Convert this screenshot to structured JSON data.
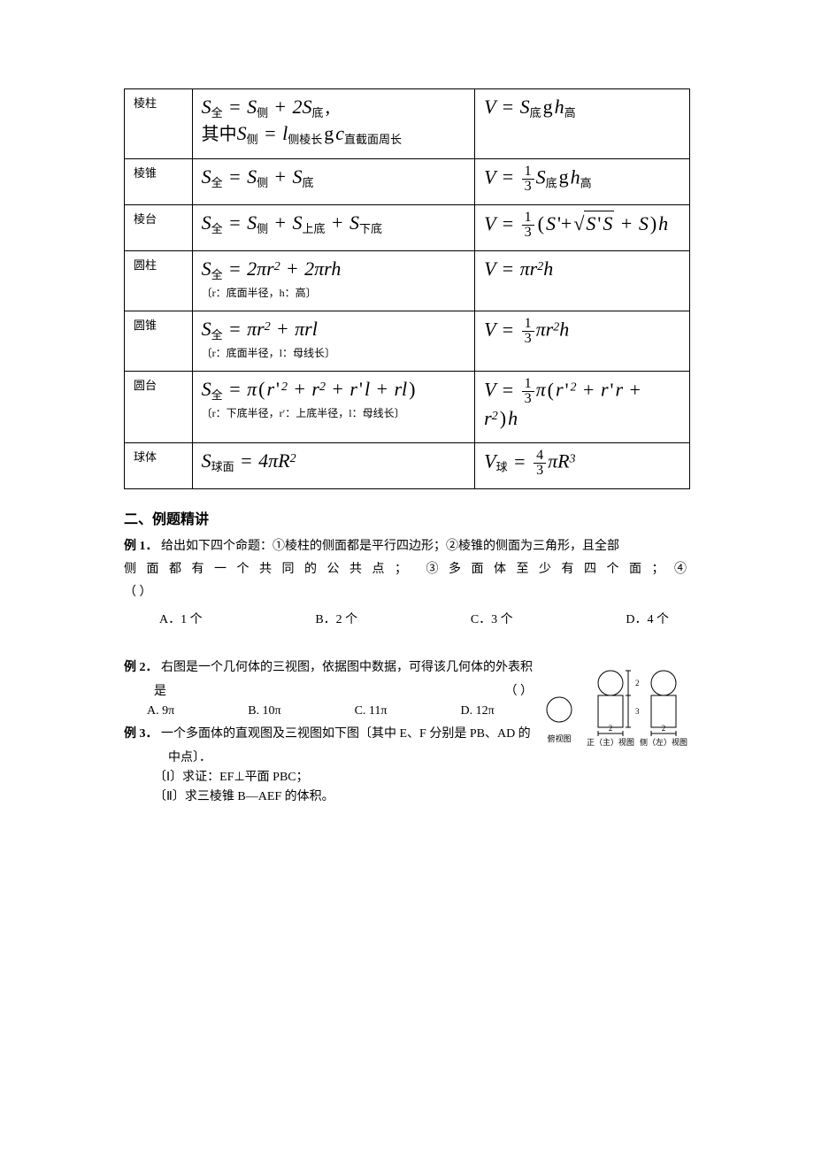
{
  "table": {
    "rows": [
      {
        "name": "棱柱",
        "sa_html": "<span>S</span><span class='sub'>全</span> <span class='op'>=</span> <span>S</span><span class='sub'>侧</span> <span class='op'>+</span> 2<span>S</span><span class='sub'>底</span><span class='op'>,</span><br><span class='cn'>其中</span><span>S</span><span class='sub'>侧</span> <span class='op'>=</span> <span>l</span><span class='sub'>侧棱长</span><span class='op'>g</span><span>c</span><span class='sub'>直截面周长</span>",
        "sa_note": "",
        "vol_html": "<span>V</span> <span class='op'>=</span> <span>S</span><span class='sub'>底</span><span class='op'>g</span><span>h</span><span class='sub'>高</span>"
      },
      {
        "name": "棱锥",
        "sa_html": "<span>S</span><span class='sub'>全</span> <span class='op'>=</span> <span>S</span><span class='sub'>侧</span> <span class='op'>+</span> <span>S</span><span class='sub'>底</span>",
        "sa_note": "",
        "vol_html": "<span>V</span> <span class='op'>=</span> <span class='frac'><span class='num'>1</span><span class='den'>3</span></span><span>S</span><span class='sub'>底</span><span class='op'>g</span><span>h</span><span class='sub'>高</span>"
      },
      {
        "name": "棱台",
        "sa_html": "<span>S</span><span class='sub'>全</span> <span class='op'>=</span> <span>S</span><span class='sub'>侧</span> <span class='op'>+</span> <span>S</span><span class='sub'>上底</span> <span class='op'>+</span> <span>S</span><span class='sub'>下底</span>",
        "sa_note": "",
        "vol_html": "<span>V</span> <span class='op'>=</span> <span class='frac'><span class='num'>1</span><span class='den'>3</span></span><span class='op'>(</span><span>S</span><span class='op'>'+</span><span class='sqrt'><span class='rad'><span>S</span><span class='op'>'</span><span>S</span></span></span> <span class='op'>+</span> <span>S</span><span class='op'>)</span><span>h</span>"
      },
      {
        "name": "圆柱",
        "sa_html": "<span>S</span><span class='sub'>全</span> <span class='op'>=</span> 2<span>π</span><span>r</span><span class='sup'>2</span> <span class='op'>+</span> 2<span>π</span><span>r</span><span>h</span>",
        "sa_note": "〔r：底面半径，h：高〕",
        "vol_html": "<span>V</span> <span class='op'>=</span> <span>π</span><span>r</span><span class='sup'>2</span><span>h</span>"
      },
      {
        "name": "圆锥",
        "sa_html": "<span>S</span><span class='sub'>全</span> <span class='op'>=</span> <span>π</span><span>r</span><span class='sup'>2</span> <span class='op'>+</span> <span>π</span><span>r</span><span>l</span>",
        "sa_note": "〔r：底面半径，l：母线长〕",
        "vol_html": "<span>V</span> <span class='op'>=</span> <span class='frac'><span class='num'>1</span><span class='den'>3</span></span><span>π</span><span>r</span><span class='sup'>2</span><span>h</span>"
      },
      {
        "name": "圆台",
        "sa_html": "<span>S</span><span class='sub'>全</span> <span class='op'>=</span> <span>π</span><span class='op'>(</span><span>r</span><span class='op'>'</span><span class='sup'>2</span> <span class='op'>+</span> <span>r</span><span class='sup'>2</span> <span class='op'>+</span> <span>r</span><span class='op'>'</span><span>l</span> <span class='op'>+</span> <span>r</span><span>l</span><span class='op'>)</span>",
        "sa_note": "〔r：下底半径，r′：上底半径，l：母线长〕",
        "vol_html": "<span>V</span> <span class='op'>=</span> <span class='frac'><span class='num'>1</span><span class='den'>3</span></span><span>π</span><span class='op'>(</span><span>r</span><span class='op'>'</span><span class='sup'>2</span> <span class='op'>+</span> <span>r</span><span class='op'>'</span><span>r</span> <span class='op'>+</span> <span>r</span><span class='sup'>2</span><span class='op'>)</span><span>h</span>"
      },
      {
        "name": "球体",
        "sa_html": "<span>S</span><span class='sub'>球面</span> <span class='op'>=</span> 4<span>π</span><span>R</span><span class='sup'>2</span>",
        "sa_note": "",
        "vol_html": "<span>V</span><span class='sub'>球</span> <span class='op'>=</span> <span class='frac'><span class='num'>4</span><span class='den'>3</span></span><span>π</span><span>R</span><span class='sup'>3</span>"
      }
    ]
  },
  "section_title": "二、例题精讲",
  "ex1": {
    "label": "例 1．",
    "stem_l1": "给出如下四个命题：①棱柱的侧面都是平行四边形；②棱锥的侧面为三角形，且全部",
    "stem_l2_left": "侧 面 都 有 一 个 共 同 的 公 共 点 ；",
    "stem_l2_right": "③ 多 面 体 至 少 有 四 个 面 ；  ④",
    "stem_l3": "（      ）",
    "options": [
      "A．1 个",
      "B．2 个",
      "C．3 个",
      "D．4 个"
    ]
  },
  "ex2": {
    "label": "例 2．",
    "stem_l1": "右图是一个几何体的三视图，依据图中数据，可得该几何体的外表积",
    "stem_l2_left": "是",
    "stem_l2_right": "（      ）",
    "options": [
      "A. 9π",
      "B. 10π",
      "C. 11π",
      "D. 12π"
    ],
    "fig": {
      "circle_r": 14,
      "rect_w": 28,
      "rect_h": 36,
      "dim_top": "2",
      "dim_side": "3",
      "dim_bottom": "2",
      "labels": [
        "俯视图",
        "正（主）视图",
        "侧（左）视图"
      ]
    }
  },
  "ex3": {
    "label": "例 3．",
    "stem_l1": "一个多面体的直观图及三视图如下图〔其中 E、F 分别是 PB、AD 的",
    "stem_l2": "中点〕．",
    "sub1": "〔Ⅰ〕求证：EF⊥平面 PBC；",
    "sub2": "〔Ⅱ〕求三棱锥 B—AEF 的体积。"
  }
}
